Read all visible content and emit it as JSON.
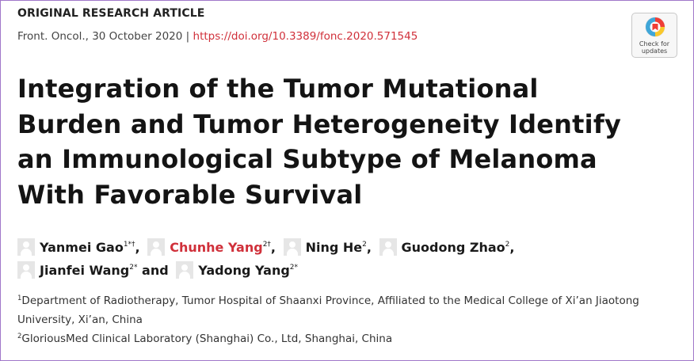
{
  "article_type": "ORIGINAL RESEARCH ARTICLE",
  "journal_meta": {
    "citation": "Front. Oncol., 30 October 2020",
    "separator": "|",
    "doi": "https://doi.org/10.3389/fonc.2020.571545"
  },
  "check_badge": {
    "line1": "Check for",
    "line2": "updates"
  },
  "title": "Integration of the Tumor Mutational Burden and Tumor Heterogeneity Identify an Immunological Subtype of Melanoma With Favorable Survival",
  "authors": [
    {
      "name": "Yanmei Gao",
      "sup": "1*†",
      "after": ",",
      "highlight": false
    },
    {
      "name": "Chunhe Yang",
      "sup": "2†",
      "after": ",",
      "highlight": true
    },
    {
      "name": "Ning He",
      "sup": "2",
      "after": ",",
      "highlight": false
    },
    {
      "name": "Guodong Zhao",
      "sup": "2",
      "after": ",",
      "highlight": false
    },
    {
      "name": "Jianfei Wang",
      "sup": "2*",
      "after": " and",
      "highlight": false
    },
    {
      "name": "Yadong Yang",
      "sup": "2*",
      "after": "",
      "highlight": false
    }
  ],
  "affiliations": [
    {
      "num": "1",
      "text": "Department of Radiotherapy, Tumor Hospital of Shaanxi Province, Affiliated to the Medical College of Xi’an Jiaotong University, Xi’an, China"
    },
    {
      "num": "2",
      "text": "GloriousMed Clinical Laboratory (Shanghai) Co., Ltd, Shanghai, China"
    }
  ],
  "colors": {
    "accent_red": "#d0303a",
    "frame_border": "#a077c9"
  }
}
